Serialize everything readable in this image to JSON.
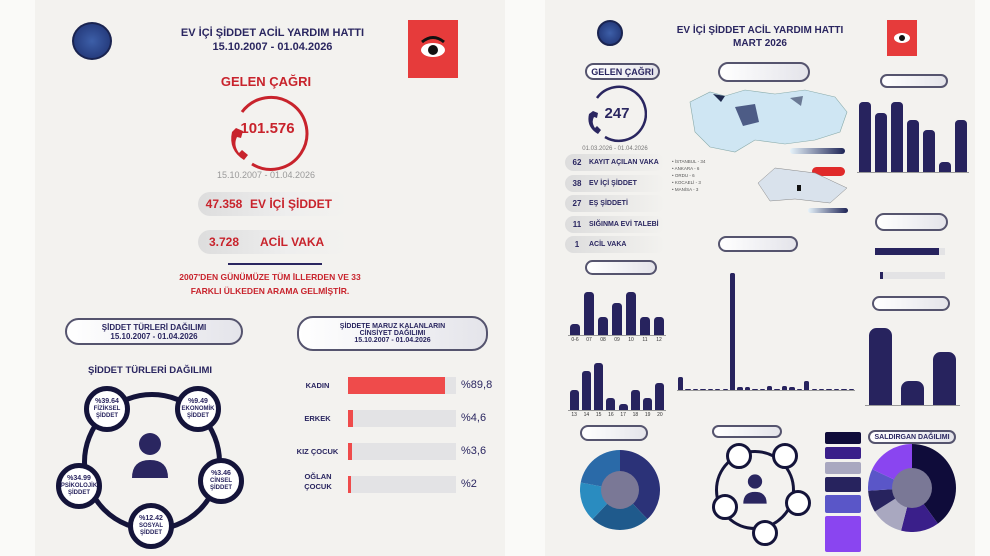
{
  "left": {
    "title": "EV İÇİ ŞİDDET ACİL YARDIM HATTI",
    "period": "15.10.2007 - 01.04.2026",
    "calls_label": "GELEN ÇAĞRI",
    "calls_value": "101.576",
    "calls_period": "15.10.2007 - 01.04.2026",
    "stats": [
      {
        "value": "47.358",
        "label": "EV İÇİ ŞİDDET"
      },
      {
        "value": "3.728",
        "label": "ACİL VAKA"
      }
    ],
    "note_line1": "2007'DEN GÜNÜMÜZE TÜM İLLERDEN VE 33",
    "note_line2": "FARKLI ÜLKEDEN ARAMA GELMİŞTİR.",
    "types_pill_line1": "ŞİDDET TÜRLERİ DAĞILIMI",
    "types_pill_line2": "15.10.2007 - 01.04.2026",
    "gender_pill_line1": "ŞİDDETE MARUZ KALANLARIN",
    "gender_pill_line2": "CİNSİYET DAĞILIMI",
    "gender_pill_line3": "15.10.2007 - 01.04.2026",
    "types_title": "ŞİDDET TÜRLERİ DAĞILIMI",
    "types": [
      {
        "pct": "%39.64",
        "l1": "FİZİKSEL",
        "l2": "ŞİDDET"
      },
      {
        "pct": "%9.49",
        "l1": "EKONOMİK",
        "l2": "ŞİDDET"
      },
      {
        "pct": "%3.46",
        "l1": "CİNSEL",
        "l2": "ŞİDDET"
      },
      {
        "pct": "%12.42",
        "l1": "SOSYAL",
        "l2": "ŞİDDET"
      },
      {
        "pct": "%34.99",
        "l1": "PSİKOLOJİK",
        "l2": "ŞİDDET"
      }
    ],
    "gender": [
      {
        "label": "KADIN",
        "pct_text": "%89,8",
        "pct": 89.8
      },
      {
        "label": "ERKEK",
        "pct_text": "%4,6",
        "pct": 4.6
      },
      {
        "label": "KIZ ÇOCUK",
        "pct_text": "%3,6",
        "pct": 3.6
      },
      {
        "label": "OĞLAN ÇOCUK",
        "pct_text": "%2",
        "pct": 2
      }
    ]
  },
  "right": {
    "title": "EV İÇİ ŞİDDET ACİL YARDIM HATTI",
    "subtitle": "MART 2026",
    "calls_label": "GELEN ÇAĞRI",
    "calls_value": "247",
    "calls_period": "01.03.2026 - 01.04.2026",
    "list": [
      {
        "n": "62",
        "label": "KAYIT AÇILAN VAKA"
      },
      {
        "n": "38",
        "label": "EV İÇİ ŞİDDET"
      },
      {
        "n": "27",
        "label": "EŞ ŞİDDETİ"
      },
      {
        "n": "11",
        "label": "SIĞINMA EVİ TALEBİ"
      },
      {
        "n": "1",
        "label": "ACİL VAKA"
      }
    ],
    "map_cities": [
      "İSTANBUL - 34",
      "ANKARA - 6",
      "ORDU - 6",
      "KOCAELİ - 3",
      "MANİSA - 3"
    ],
    "saldirgan_title": "SALDIRGAN DAĞILIMI",
    "chart_top_right": [
      20,
      17,
      20,
      15,
      12,
      3,
      15
    ],
    "chart_small_1": [
      3,
      12,
      5,
      9,
      12,
      5,
      5
    ],
    "chart_small_1_x": [
      "0-6",
      "07",
      "08",
      "09",
      "10",
      "11",
      "12"
    ],
    "chart_small_2": [
      5,
      10,
      12,
      3,
      1.5,
      5,
      3,
      7
    ],
    "chart_small_2_x": [
      "13",
      "14",
      "15",
      "16",
      "17",
      "18",
      "19",
      "20"
    ],
    "chart_middle": [
      9,
      0.5,
      0.5,
      0.5,
      0.5,
      0.5,
      0.5,
      78,
      2,
      2,
      0.5,
      0.5,
      3,
      0.5,
      3,
      2,
      0.5,
      6,
      0.5,
      0.5,
      0.5,
      0.5,
      0.5,
      0.5
    ],
    "chart_right_mid": [
      130,
      40,
      90
    ],
    "gender_kadin_pct": 92,
    "gender_kiz_pct": 3,
    "donut_left": [
      38,
      24,
      16,
      22
    ],
    "donut_right": [
      40,
      14,
      12,
      8,
      8,
      18
    ]
  },
  "colors": {
    "red": "#c8232c",
    "navy": "#2a2660",
    "bar": "#27235e"
  }
}
